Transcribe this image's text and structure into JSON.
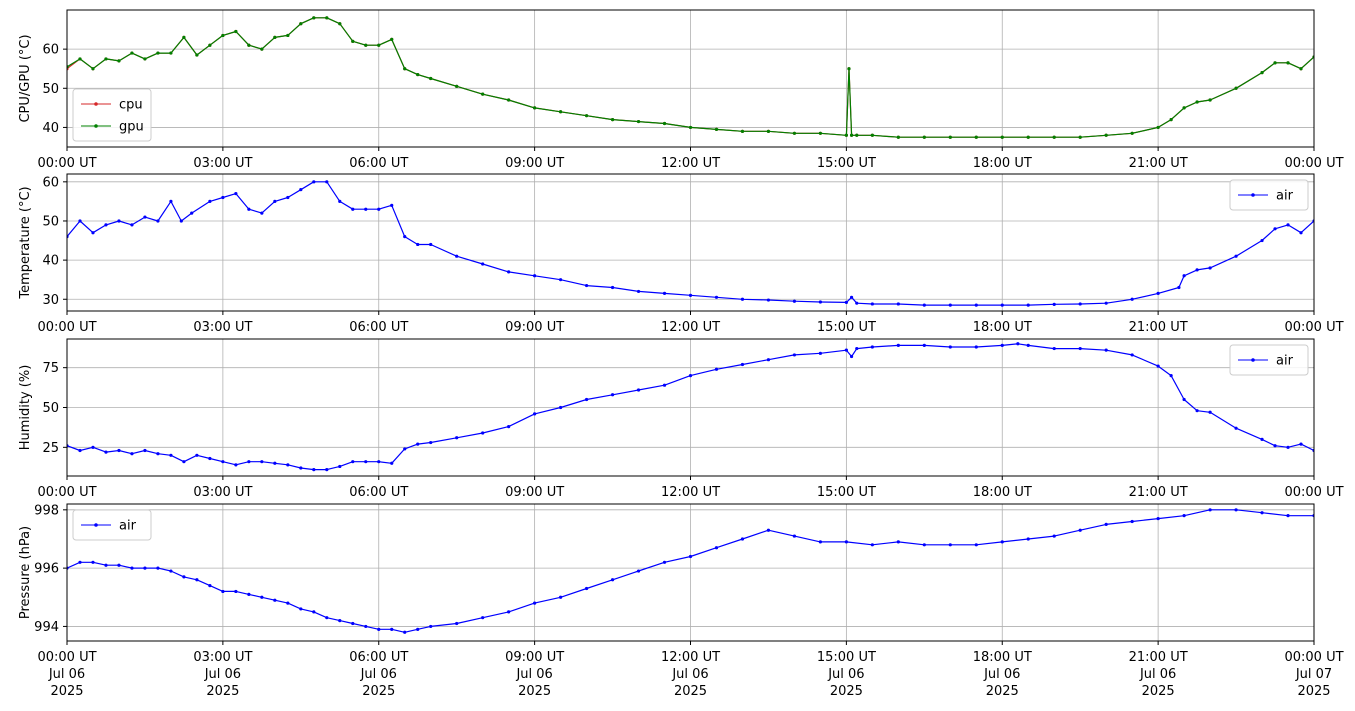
{
  "colors": {
    "cpu": "#d62728",
    "gpu": "#008000",
    "air": "#0000ff",
    "grid": "#b0b0b0",
    "axis": "#000000"
  },
  "x_axis": {
    "range_hours": [
      0,
      24
    ],
    "ticks": [
      {
        "hour": 0,
        "label": "00:00 UT",
        "date": "Jul 06",
        "year": "2025"
      },
      {
        "hour": 3,
        "label": "03:00 UT",
        "date": "Jul 06",
        "year": "2025"
      },
      {
        "hour": 6,
        "label": "06:00 UT",
        "date": "Jul 06",
        "year": "2025"
      },
      {
        "hour": 9,
        "label": "09:00 UT",
        "date": "Jul 06",
        "year": "2025"
      },
      {
        "hour": 12,
        "label": "12:00 UT",
        "date": "Jul 06",
        "year": "2025"
      },
      {
        "hour": 15,
        "label": "15:00 UT",
        "date": "Jul 06",
        "year": "2025"
      },
      {
        "hour": 18,
        "label": "18:00 UT",
        "date": "Jul 06",
        "year": "2025"
      },
      {
        "hour": 21,
        "label": "21:00 UT",
        "date": "Jul 06",
        "year": "2025"
      },
      {
        "hour": 24,
        "label": "00:00 UT",
        "date": "Jul 07",
        "year": "2025"
      }
    ]
  },
  "chart_data": [
    {
      "type": "line",
      "ylabel": "CPU/GPU (°C)",
      "ylim": [
        35,
        70
      ],
      "yticks": [
        40,
        50,
        60
      ],
      "grid": true,
      "legend": "lower-left",
      "series": [
        {
          "name": "cpu",
          "color": "#d62728",
          "x": [
            0,
            0.25,
            0.5,
            0.75,
            1,
            1.25,
            1.5,
            1.75,
            2,
            2.25,
            2.5,
            2.75,
            3,
            3.25,
            3.5,
            3.75,
            4,
            4.25,
            4.5,
            4.75,
            5,
            5.25,
            5.5,
            5.75,
            6,
            6.25,
            6.5,
            6.75,
            7,
            7.5,
            8,
            8.5,
            9,
            9.5,
            10,
            10.5,
            11,
            11.5,
            12,
            12.5,
            13,
            13.5,
            14,
            14.5,
            15,
            15.05,
            15.1,
            15.2,
            15.5,
            16,
            16.5,
            17,
            17.5,
            18,
            18.5,
            19,
            19.5,
            20,
            20.5,
            21,
            21.25,
            21.5,
            21.75,
            22,
            22.5,
            23,
            23.25,
            23.5,
            23.75,
            24
          ],
          "values": [
            55,
            57.5,
            55,
            57.5,
            57,
            59,
            57.5,
            59,
            59,
            63,
            58.5,
            61,
            63.5,
            64.5,
            61,
            60,
            63,
            63.5,
            66.5,
            68,
            68,
            66.5,
            62,
            61,
            61,
            62.5,
            55,
            53.5,
            52.5,
            50.5,
            48.5,
            47,
            45,
            44,
            43,
            42,
            41.5,
            41,
            40,
            39.5,
            39,
            39,
            38.5,
            38.5,
            38,
            55,
            38,
            38,
            38,
            37.5,
            37.5,
            37.5,
            37.5,
            37.5,
            37.5,
            37.5,
            37.5,
            38,
            38.5,
            40,
            42,
            45,
            46.5,
            47,
            50,
            54,
            56.5,
            56.5,
            55,
            58
          ]
        },
        {
          "name": "gpu",
          "color": "#008000",
          "x": [
            0,
            0.25,
            0.5,
            0.75,
            1,
            1.25,
            1.5,
            1.75,
            2,
            2.25,
            2.5,
            2.75,
            3,
            3.25,
            3.5,
            3.75,
            4,
            4.25,
            4.5,
            4.75,
            5,
            5.25,
            5.5,
            5.75,
            6,
            6.25,
            6.5,
            6.75,
            7,
            7.5,
            8,
            8.5,
            9,
            9.5,
            10,
            10.5,
            11,
            11.5,
            12,
            12.5,
            13,
            13.5,
            14,
            14.5,
            15,
            15.05,
            15.1,
            15.2,
            15.5,
            16,
            16.5,
            17,
            17.5,
            18,
            18.5,
            19,
            19.5,
            20,
            20.5,
            21,
            21.25,
            21.5,
            21.75,
            22,
            22.5,
            23,
            23.25,
            23.5,
            23.75,
            24
          ],
          "values": [
            55.5,
            57.5,
            55,
            57.5,
            57,
            59,
            57.5,
            59,
            59,
            63,
            58.5,
            61,
            63.5,
            64.5,
            61,
            60,
            63,
            63.5,
            66.5,
            68,
            68,
            66.5,
            62,
            61,
            61,
            62.5,
            55,
            53.5,
            52.5,
            50.5,
            48.5,
            47,
            45,
            44,
            43,
            42,
            41.5,
            41,
            40,
            39.5,
            39,
            39,
            38.5,
            38.5,
            38,
            55,
            38,
            38,
            38,
            37.5,
            37.5,
            37.5,
            37.5,
            37.5,
            37.5,
            37.5,
            37.5,
            38,
            38.5,
            40,
            42,
            45,
            46.5,
            47,
            50,
            54,
            56.5,
            56.5,
            55,
            58
          ]
        }
      ]
    },
    {
      "type": "line",
      "ylabel": "Temperature (°C)",
      "ylim": [
        27,
        62
      ],
      "yticks": [
        30,
        40,
        50,
        60
      ],
      "grid": true,
      "legend": "upper-right",
      "series": [
        {
          "name": "air",
          "color": "#0000ff",
          "x": [
            0,
            0.25,
            0.5,
            0.75,
            1,
            1.25,
            1.5,
            1.75,
            2,
            2.2,
            2.4,
            2.75,
            3,
            3.25,
            3.5,
            3.75,
            4,
            4.25,
            4.5,
            4.75,
            5,
            5.25,
            5.5,
            5.75,
            6,
            6.25,
            6.5,
            6.75,
            7,
            7.5,
            8,
            8.5,
            9,
            9.5,
            10,
            10.5,
            11,
            11.5,
            12,
            12.5,
            13,
            13.5,
            14,
            14.5,
            15,
            15.1,
            15.2,
            15.5,
            16,
            16.5,
            17,
            17.5,
            18,
            18.5,
            19,
            19.5,
            20,
            20.5,
            21,
            21.4,
            21.5,
            21.75,
            22,
            22.5,
            23,
            23.25,
            23.5,
            23.75,
            24
          ],
          "values": [
            46,
            50,
            47,
            49,
            50,
            49,
            51,
            50,
            55,
            50,
            52,
            55,
            56,
            57,
            53,
            52,
            55,
            56,
            58,
            60,
            60,
            55,
            53,
            53,
            53,
            54,
            46,
            44,
            44,
            41,
            39,
            37,
            36,
            35,
            33.5,
            33,
            32,
            31.5,
            31,
            30.5,
            30,
            29.8,
            29.5,
            29.3,
            29.2,
            30.5,
            29,
            28.8,
            28.8,
            28.5,
            28.5,
            28.5,
            28.5,
            28.5,
            28.7,
            28.8,
            29,
            30,
            31.5,
            33,
            36,
            37.5,
            38,
            41,
            45,
            48,
            49,
            47,
            50
          ]
        }
      ]
    },
    {
      "type": "line",
      "ylabel": "Humidity (%)",
      "ylim": [
        7,
        93
      ],
      "yticks": [
        25,
        50,
        75
      ],
      "grid": true,
      "legend": "upper-right",
      "series": [
        {
          "name": "air",
          "color": "#0000ff",
          "x": [
            0,
            0.25,
            0.5,
            0.75,
            1,
            1.25,
            1.5,
            1.75,
            2,
            2.25,
            2.5,
            2.75,
            3,
            3.25,
            3.5,
            3.75,
            4,
            4.25,
            4.5,
            4.75,
            5,
            5.25,
            5.5,
            5.75,
            6,
            6.25,
            6.5,
            6.75,
            7,
            7.5,
            8,
            8.5,
            9,
            9.5,
            10,
            10.5,
            11,
            11.5,
            12,
            12.5,
            13,
            13.5,
            14,
            14.5,
            15,
            15.1,
            15.2,
            15.5,
            16,
            16.5,
            17,
            17.5,
            18,
            18.3,
            18.5,
            19,
            19.5,
            20,
            20.5,
            21,
            21.25,
            21.5,
            21.75,
            22,
            22.5,
            23,
            23.25,
            23.5,
            23.75,
            24
          ],
          "values": [
            26,
            23,
            25,
            22,
            23,
            21,
            23,
            21,
            20,
            16,
            20,
            18,
            16,
            14,
            16,
            16,
            15,
            14,
            12,
            11,
            11,
            13,
            16,
            16,
            16,
            15,
            24,
            27,
            28,
            31,
            34,
            38,
            46,
            50,
            55,
            58,
            61,
            64,
            70,
            74,
            77,
            80,
            83,
            84,
            86,
            82,
            87,
            88,
            89,
            89,
            88,
            88,
            89,
            90,
            89,
            87,
            87,
            86,
            83,
            76,
            70,
            55,
            48,
            47,
            37,
            30,
            26,
            25,
            27,
            23
          ]
        }
      ]
    },
    {
      "type": "line",
      "ylabel": "Pressure (hPa)",
      "ylim": [
        993.5,
        998.2
      ],
      "yticks": [
        994,
        996,
        998
      ],
      "grid": true,
      "legend": "upper-left",
      "series": [
        {
          "name": "air",
          "color": "#0000ff",
          "x": [
            0,
            0.25,
            0.5,
            0.75,
            1,
            1.25,
            1.5,
            1.75,
            2,
            2.25,
            2.5,
            2.75,
            3,
            3.25,
            3.5,
            3.75,
            4,
            4.25,
            4.5,
            4.75,
            5,
            5.25,
            5.5,
            5.75,
            6,
            6.25,
            6.5,
            6.75,
            7,
            7.5,
            8,
            8.5,
            9,
            9.5,
            10,
            10.5,
            11,
            11.5,
            12,
            12.5,
            13,
            13.5,
            14,
            14.5,
            15,
            15.5,
            16,
            16.5,
            17,
            17.5,
            18,
            18.5,
            19,
            19.5,
            20,
            20.5,
            21,
            21.5,
            22,
            22.5,
            23,
            23.5,
            24
          ],
          "values": [
            996,
            996.2,
            996.2,
            996.1,
            996.1,
            996,
            996,
            996,
            995.9,
            995.7,
            995.6,
            995.4,
            995.2,
            995.2,
            995.1,
            995,
            994.9,
            994.8,
            994.6,
            994.5,
            994.3,
            994.2,
            994.1,
            994,
            993.9,
            993.9,
            993.8,
            993.9,
            994,
            994.1,
            994.3,
            994.5,
            994.8,
            995,
            995.3,
            995.6,
            995.9,
            996.2,
            996.4,
            996.7,
            997,
            997.3,
            997.1,
            996.9,
            996.9,
            996.8,
            996.9,
            996.8,
            996.8,
            996.8,
            996.9,
            997,
            997.1,
            997.3,
            997.5,
            997.6,
            997.7,
            997.8,
            998,
            998,
            997.9,
            997.8,
            997.8
          ]
        }
      ]
    }
  ]
}
